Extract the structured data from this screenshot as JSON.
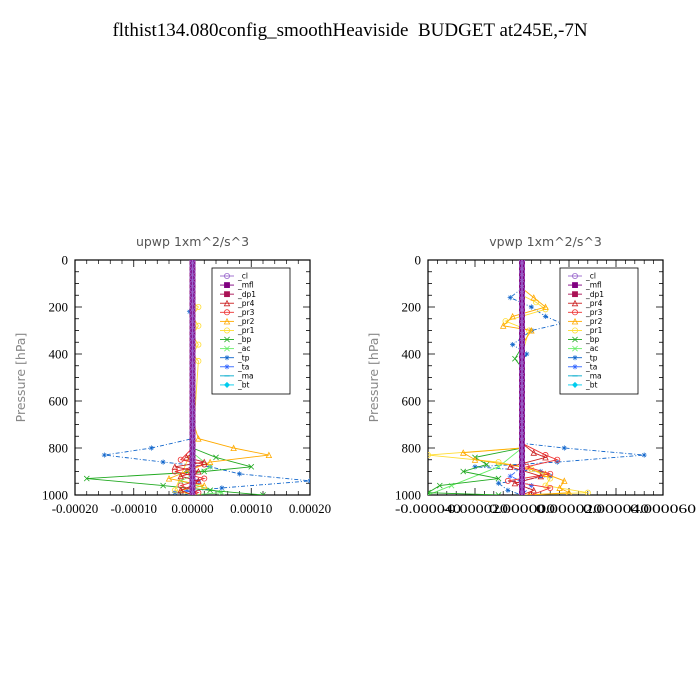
{
  "title": "flthist134.080config_smoothHeaviside  BUDGET at245E,-7N",
  "chart_data": [
    {
      "type": "line",
      "title": "upwp   1xm^2/s^3",
      "ylabel": "Pressure  [hPa]",
      "xlabel": "",
      "xlim": [
        -0.0002,
        0.0002
      ],
      "ylim": [
        1000,
        0
      ],
      "x_ticks": [
        -0.0002,
        -0.0001,
        0,
        0.0001,
        0.0002
      ],
      "x_tick_labels": [
        "-0.00020",
        "-0.00010",
        "0.00000",
        "0.00010",
        "0.00020"
      ],
      "y_ticks": [
        0,
        200,
        400,
        600,
        800,
        1000
      ],
      "y_tick_labels": [
        "0",
        "200",
        "400",
        "600",
        "800",
        "1000"
      ],
      "legend_position": "top-right",
      "series": [
        {
          "name": "_cl",
          "color": "#9966cc",
          "marker": "circle",
          "points": [
            [
              0,
              0
            ],
            [
              0,
              200
            ],
            [
              0,
              400
            ],
            [
              0,
              600
            ],
            [
              0,
              800
            ],
            [
              0,
              1000
            ]
          ]
        },
        {
          "name": "_mfl",
          "color": "#800080",
          "marker": "square",
          "points": [
            [
              0,
              0
            ],
            [
              0,
              200
            ],
            [
              0,
              400
            ],
            [
              0,
              600
            ],
            [
              0,
              800
            ],
            [
              0,
              1000
            ]
          ]
        },
        {
          "name": "_dp1",
          "color": "#aa1155",
          "marker": "square",
          "points": [
            [
              0,
              0
            ],
            [
              0,
              200
            ],
            [
              0,
              400
            ],
            [
              0,
              600
            ],
            [
              0,
              800
            ],
            [
              0,
              1000
            ]
          ]
        },
        {
          "name": "_pr4",
          "color": "#cc2222",
          "marker": "triangle",
          "points": [
            [
              0,
              780
            ],
            [
              0,
              820
            ],
            [
              -1e-05,
              840
            ],
            [
              2e-05,
              860
            ],
            [
              -3e-05,
              880
            ],
            [
              1e-05,
              900
            ],
            [
              -2e-05,
              920
            ],
            [
              1e-05,
              940
            ],
            [
              0,
              960
            ],
            [
              -2e-05,
              980
            ],
            [
              0,
              1000
            ]
          ]
        },
        {
          "name": "_pr3",
          "color": "#ee3333",
          "marker": "circle",
          "points": [
            [
              0,
              800
            ],
            [
              -2e-05,
              850
            ],
            [
              2e-05,
              870
            ],
            [
              -3e-05,
              900
            ],
            [
              2e-05,
              930
            ],
            [
              -2e-05,
              960
            ],
            [
              1e-05,
              990
            ],
            [
              0,
              1000
            ]
          ]
        },
        {
          "name": "_pr2",
          "color": "#ffaa00",
          "marker": "triangle",
          "points": [
            [
              0,
              680
            ],
            [
              1e-05,
              760
            ],
            [
              7e-05,
              800
            ],
            [
              0.00013,
              830
            ],
            [
              3e-05,
              860
            ],
            [
              -1e-05,
              900
            ],
            [
              -4e-05,
              930
            ],
            [
              2e-05,
              960
            ],
            [
              -2e-05,
              980
            ],
            [
              0,
              1000
            ]
          ]
        },
        {
          "name": "_pr1",
          "color": "#ffdd33",
          "marker": "circle",
          "points": [
            [
              0,
              180
            ],
            [
              1e-05,
              200
            ],
            [
              0,
              240
            ],
            [
              1e-05,
              280
            ],
            [
              0,
              320
            ],
            [
              1e-05,
              360
            ],
            [
              0,
              400
            ],
            [
              1e-05,
              430
            ],
            [
              0,
              800
            ],
            [
              -3e-05,
              980
            ],
            [
              0,
              1000
            ]
          ]
        },
        {
          "name": "_bp",
          "color": "#22aa22",
          "marker": "cross",
          "points": [
            [
              0,
              800
            ],
            [
              4e-05,
              840
            ],
            [
              0.0001,
              880
            ],
            [
              2e-05,
              900
            ],
            [
              -0.00018,
              930
            ],
            [
              -5e-05,
              960
            ],
            [
              3e-05,
              980
            ],
            [
              0.00012,
              1000
            ]
          ]
        },
        {
          "name": "_ac",
          "color": "#66ee66",
          "marker": "cross",
          "points": [
            [
              0,
              820
            ],
            [
              3e-05,
              880
            ],
            [
              -2e-05,
              940
            ],
            [
              5e-05,
              990
            ],
            [
              0,
              1000
            ]
          ]
        },
        {
          "name": "_tp",
          "color": "#1166cc",
          "marker": "star",
          "points": [
            [
              0,
              200
            ],
            [
              -5e-06,
              220
            ],
            [
              0,
              300
            ],
            [
              0,
              760
            ],
            [
              -7e-05,
              800
            ],
            [
              -0.00015,
              830
            ],
            [
              -5e-05,
              860
            ],
            [
              3e-05,
              880
            ],
            [
              8e-05,
              910
            ],
            [
              0.0002,
              940
            ],
            [
              5e-05,
              970
            ],
            [
              -3e-05,
              990
            ],
            [
              0,
              1000
            ]
          ]
        },
        {
          "name": "_ta",
          "color": "#3366ff",
          "marker": "star",
          "points": [
            [
              0,
              860
            ],
            [
              -1e-05,
              900
            ],
            [
              1e-05,
              940
            ],
            [
              -1e-05,
              980
            ],
            [
              0,
              1000
            ]
          ]
        },
        {
          "name": "_ma",
          "color": "#00aacc",
          "marker": "dash",
          "points": [
            [
              0,
              0
            ],
            [
              0,
              1000
            ]
          ]
        },
        {
          "name": "_bt",
          "color": "#00ccee",
          "marker": "diamond",
          "points": [
            [
              0,
              0
            ],
            [
              0,
              1000
            ]
          ]
        }
      ]
    },
    {
      "type": "line",
      "title": "vpwp   1xm^2/s^3",
      "ylabel": "Pressure  [hPa]",
      "xlabel": "",
      "xlim": [
        -4e-05,
        6e-05
      ],
      "ylim": [
        1000,
        0
      ],
      "x_ticks": [
        -4e-05,
        -2e-05,
        0,
        2e-05,
        4e-05,
        6e-05
      ],
      "x_tick_labels": [
        "-0.000040",
        "-0.000020",
        "0.000000",
        "0.000020",
        "0.000040",
        "0.000060"
      ],
      "y_ticks": [
        0,
        200,
        400,
        600,
        800,
        1000
      ],
      "y_tick_labels": [
        "0",
        "200",
        "400",
        "600",
        "800",
        "1000"
      ],
      "legend_position": "top-right",
      "series": [
        {
          "name": "_cl",
          "color": "#9966cc",
          "marker": "circle",
          "points": [
            [
              0,
              0
            ],
            [
              0,
              200
            ],
            [
              0,
              400
            ],
            [
              0,
              600
            ],
            [
              0,
              800
            ],
            [
              0,
              1000
            ]
          ]
        },
        {
          "name": "_mfl",
          "color": "#800080",
          "marker": "square",
          "points": [
            [
              0,
              0
            ],
            [
              0,
              200
            ],
            [
              0,
              400
            ],
            [
              0,
              600
            ],
            [
              0,
              800
            ],
            [
              0,
              1000
            ]
          ]
        },
        {
          "name": "_dp1",
          "color": "#aa1155",
          "marker": "square",
          "points": [
            [
              0,
              0
            ],
            [
              0,
              200
            ],
            [
              0,
              400
            ],
            [
              0,
              600
            ],
            [
              0,
              800
            ],
            [
              0,
              1000
            ]
          ]
        },
        {
          "name": "_pr4",
          "color": "#cc2222",
          "marker": "triangle",
          "points": [
            [
              0,
              780
            ],
            [
              5e-06,
              820
            ],
            [
              1e-05,
              840
            ],
            [
              -5e-06,
              880
            ],
            [
              8e-06,
              920
            ],
            [
              -3e-06,
              950
            ],
            [
              5e-06,
              980
            ],
            [
              0,
              1000
            ]
          ]
        },
        {
          "name": "_pr3",
          "color": "#ee3333",
          "marker": "circle",
          "points": [
            [
              0,
              780
            ],
            [
              1e-05,
              830
            ],
            [
              1.5e-05,
              850
            ],
            [
              2e-06,
              880
            ],
            [
              1.2e-05,
              910
            ],
            [
              -6e-06,
              940
            ],
            [
              1.2e-05,
              970
            ],
            [
              4e-06,
              1000
            ]
          ]
        },
        {
          "name": "_pr2",
          "color": "#ffaa00",
          "marker": "triangle",
          "points": [
            [
              0,
              120
            ],
            [
              5e-06,
              160
            ],
            [
              1e-05,
              200
            ],
            [
              -4e-06,
              240
            ],
            [
              -8e-06,
              280
            ],
            [
              4e-06,
              300
            ],
            [
              0,
              360
            ],
            [
              0,
              800
            ],
            [
              -2.5e-05,
              820
            ],
            [
              -2e-05,
              850
            ],
            [
              0,
              880
            ],
            [
              1e-05,
              910
            ],
            [
              1.8e-05,
              940
            ],
            [
              1.6e-05,
              970
            ],
            [
              2e-05,
              990
            ],
            [
              3e-06,
              1000
            ]
          ]
        },
        {
          "name": "_pr1",
          "color": "#ffdd33",
          "marker": "circle",
          "points": [
            [
              0,
              150
            ],
            [
              6e-06,
              180
            ],
            [
              1e-05,
              210
            ],
            [
              -7e-06,
              260
            ],
            [
              3e-06,
              300
            ],
            [
              0,
              400
            ],
            [
              0,
              800
            ],
            [
              -4e-05,
              830
            ],
            [
              -1e-05,
              860
            ],
            [
              4e-06,
              890
            ],
            [
              1.2e-05,
              930
            ],
            [
              1e-05,
              960
            ],
            [
              2.8e-05,
              990
            ],
            [
              0,
              1000
            ]
          ]
        },
        {
          "name": "_bp",
          "color": "#22aa22",
          "marker": "cross",
          "points": [
            [
              0,
              370
            ],
            [
              -3e-06,
              420
            ],
            [
              0,
              460
            ],
            [
              0,
              800
            ],
            [
              -2e-05,
              840
            ],
            [
              -1.5e-05,
              870
            ],
            [
              -2.5e-05,
              900
            ],
            [
              -1e-05,
              930
            ],
            [
              -3.5e-05,
              960
            ],
            [
              -4e-05,
              990
            ],
            [
              -1e-05,
              1000
            ]
          ]
        },
        {
          "name": "_ac",
          "color": "#66ee66",
          "marker": "cross",
          "points": [
            [
              0,
              800
            ],
            [
              -1e-05,
              880
            ],
            [
              -3e-05,
              960
            ],
            [
              -4e-05,
              1000
            ]
          ]
        },
        {
          "name": "_tp",
          "color": "#1166cc",
          "marker": "star",
          "points": [
            [
              0,
              120
            ],
            [
              -5e-06,
              160
            ],
            [
              4e-06,
              200
            ],
            [
              1e-05,
              240
            ],
            [
              1.7e-05,
              270
            ],
            [
              4e-06,
              300
            ],
            [
              -4e-06,
              360
            ],
            [
              2e-06,
              400
            ],
            [
              0,
              440
            ],
            [
              0,
              780
            ],
            [
              1.8e-05,
              800
            ],
            [
              5.2e-05,
              830
            ],
            [
              1.5e-05,
              860
            ],
            [
              -2e-05,
              880
            ],
            [
              8e-06,
              900
            ],
            [
              1.2e-05,
              920
            ],
            [
              -1e-05,
              950
            ],
            [
              -6e-06,
              980
            ],
            [
              0,
              1000
            ]
          ]
        },
        {
          "name": "_ta",
          "color": "#3366ff",
          "marker": "star",
          "points": [
            [
              0,
              880
            ],
            [
              -5e-06,
              920
            ],
            [
              4e-06,
              960
            ],
            [
              0,
              1000
            ]
          ]
        },
        {
          "name": "_ma",
          "color": "#00aacc",
          "marker": "dash",
          "points": [
            [
              0,
              0
            ],
            [
              0,
              1000
            ]
          ]
        },
        {
          "name": "_bt",
          "color": "#00ccee",
          "marker": "diamond",
          "points": [
            [
              0,
              0
            ],
            [
              0,
              1000
            ]
          ]
        }
      ]
    }
  ]
}
